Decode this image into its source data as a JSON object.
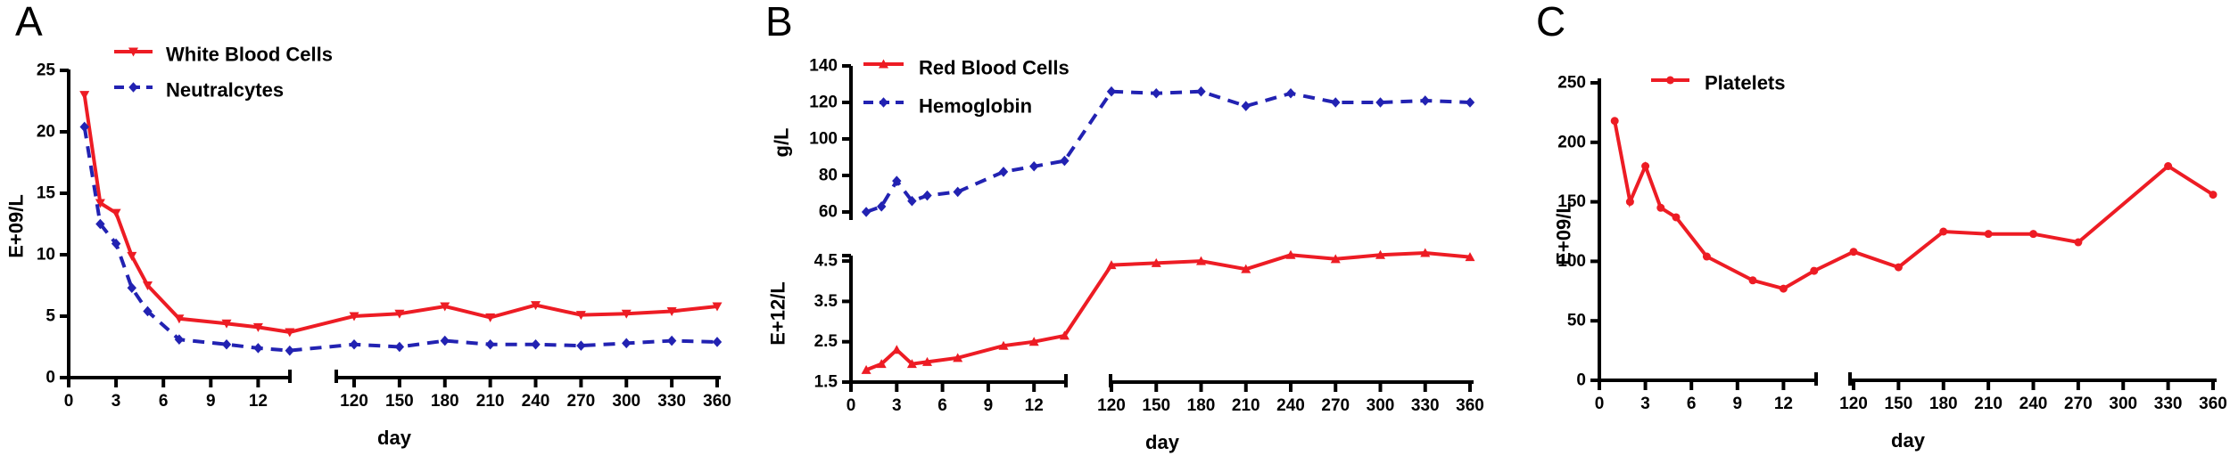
{
  "figure": {
    "background": "#ffffff"
  },
  "colors": {
    "series_red": "#ed1c24",
    "series_blue": "#2222b2",
    "axis_black": "#000000"
  },
  "chart_data": [
    {
      "type": "line",
      "panel": "A",
      "xlabel": "day",
      "x_axis": {
        "left_ticks": [
          0,
          3,
          6,
          9,
          12
        ],
        "right_ticks": [
          120,
          150,
          180,
          210,
          240,
          270,
          300,
          330,
          360
        ],
        "axis_break": true
      },
      "y_axes": [
        {
          "label": "E+09/L",
          "ticks": [
            0,
            5,
            10,
            15,
            20,
            25
          ],
          "range": [
            0,
            25
          ]
        }
      ],
      "legend": [
        {
          "label": "White Blood Cells",
          "color": "#ed1c24",
          "line": "solid",
          "marker": "triangle-down"
        },
        {
          "label": "Neutralcytes",
          "color": "#2222b2",
          "line": "dashed",
          "marker": "diamond"
        }
      ],
      "series": [
        {
          "name": "White Blood Cells",
          "color": "#ed1c24",
          "line": "solid",
          "marker": "triangle-down",
          "y_axis": 0,
          "x": [
            1,
            2,
            3,
            4,
            5,
            7,
            10,
            12,
            14,
            120,
            150,
            180,
            210,
            240,
            270,
            300,
            330,
            360
          ],
          "y": [
            23,
            14.2,
            13.4,
            9.9,
            7.5,
            4.8,
            4.4,
            4.1,
            3.7,
            5.0,
            5.2,
            5.8,
            4.9,
            5.9,
            5.1,
            5.2,
            5.4,
            5.8
          ]
        },
        {
          "name": "Neutralcytes",
          "color": "#2222b2",
          "line": "dashed",
          "marker": "diamond",
          "y_axis": 0,
          "x": [
            1,
            2,
            3,
            4,
            5,
            7,
            10,
            12,
            14,
            120,
            150,
            180,
            210,
            240,
            270,
            300,
            330,
            360
          ],
          "y": [
            20.4,
            12.5,
            10.9,
            7.3,
            5.4,
            3.1,
            2.7,
            2.4,
            2.2,
            2.7,
            2.5,
            3.0,
            2.7,
            2.7,
            2.6,
            2.8,
            3.0,
            2.9
          ]
        }
      ]
    },
    {
      "type": "line",
      "panel": "B",
      "xlabel": "day",
      "x_axis": {
        "left_ticks": [
          0,
          3,
          6,
          9,
          12
        ],
        "right_ticks": [
          120,
          150,
          180,
          210,
          240,
          270,
          300,
          330,
          360
        ],
        "axis_break": true
      },
      "y_axes": [
        {
          "label": "g/L",
          "ticks": [
            60,
            80,
            100,
            120,
            140
          ],
          "range": [
            60,
            140
          ]
        },
        {
          "label": "E+12/L",
          "ticks": [
            1.5,
            2.5,
            3.5,
            4.5
          ],
          "range": [
            1.5,
            4.5
          ]
        }
      ],
      "legend": [
        {
          "label": "Red Blood Cells",
          "color": "#ed1c24",
          "line": "solid",
          "marker": "triangle-up"
        },
        {
          "label": "Hemoglobin",
          "color": "#2222b2",
          "line": "dashed",
          "marker": "diamond"
        }
      ],
      "series": [
        {
          "name": "Hemoglobin",
          "color": "#2222b2",
          "line": "dashed",
          "marker": "diamond",
          "y_axis": 0,
          "x": [
            1,
            2,
            3,
            4,
            5,
            7,
            10,
            12,
            14,
            120,
            150,
            180,
            210,
            240,
            270,
            300,
            330,
            360
          ],
          "y": [
            60,
            63,
            77,
            66,
            69,
            71,
            82,
            85,
            88,
            126,
            125,
            126,
            118,
            125,
            120,
            120,
            121,
            120
          ]
        },
        {
          "name": "Red Blood Cells",
          "color": "#ed1c24",
          "line": "solid",
          "marker": "triangle-up",
          "y_axis": 1,
          "x": [
            1,
            2,
            3,
            4,
            5,
            7,
            10,
            12,
            14,
            120,
            150,
            180,
            210,
            240,
            270,
            300,
            330,
            360
          ],
          "y": [
            1.8,
            1.95,
            2.3,
            1.95,
            2.0,
            2.1,
            2.4,
            2.5,
            2.65,
            4.4,
            4.45,
            4.5,
            4.3,
            4.65,
            4.55,
            4.65,
            4.7,
            4.6
          ]
        }
      ]
    },
    {
      "type": "line",
      "panel": "C",
      "xlabel": "day",
      "x_axis": {
        "left_ticks": [
          0,
          3,
          6,
          9,
          12
        ],
        "right_ticks": [
          120,
          150,
          180,
          210,
          240,
          270,
          300,
          330,
          360
        ],
        "axis_break": true
      },
      "y_axes": [
        {
          "label": "E+09/L",
          "ticks": [
            0,
            50,
            100,
            150,
            200,
            250
          ],
          "range": [
            0,
            250
          ]
        }
      ],
      "legend": [
        {
          "label": "Platelets",
          "color": "#ed1c24",
          "line": "solid",
          "marker": "circle"
        }
      ],
      "series": [
        {
          "name": "Platelets",
          "color": "#ed1c24",
          "line": "solid",
          "marker": "circle",
          "y_axis": 0,
          "x": [
            1,
            2,
            3,
            4,
            5,
            7,
            10,
            12,
            14,
            120,
            150,
            180,
            210,
            240,
            270,
            330,
            360
          ],
          "y": [
            218,
            150,
            180,
            145,
            137,
            104,
            84,
            77,
            92,
            108,
            95,
            125,
            123,
            123,
            116,
            180,
            156
          ]
        }
      ]
    }
  ]
}
